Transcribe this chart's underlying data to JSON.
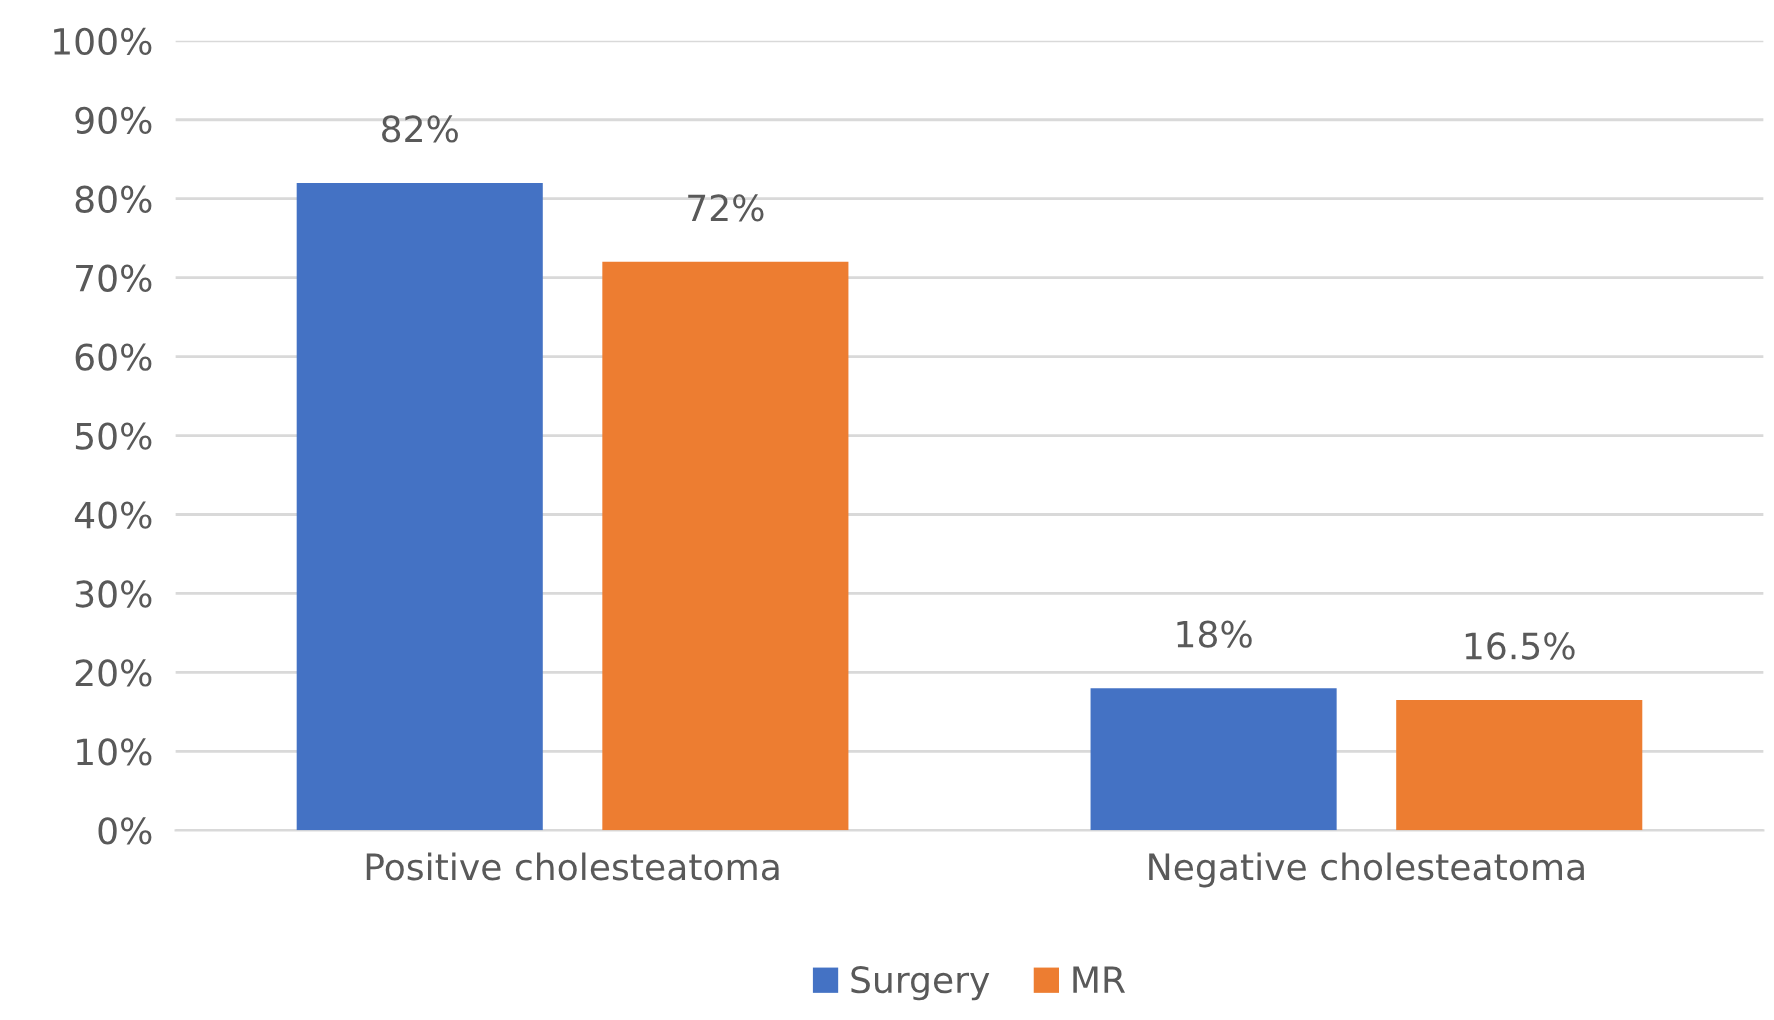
{
  "chart_data": {
    "type": "bar",
    "categories": [
      "Positive cholesteatoma",
      "Negative cholesteatoma"
    ],
    "series": [
      {
        "name": "Surgery",
        "color": "#4472c4",
        "values": [
          82,
          18
        ],
        "value_labels": [
          "82%",
          "18%"
        ]
      },
      {
        "name": "MR",
        "color": "#ed7d31",
        "values": [
          72,
          16.5
        ],
        "value_labels": [
          "72%",
          "16.5%"
        ]
      }
    ],
    "ylim": [
      0,
      100
    ],
    "yticks": [
      {
        "value": 0,
        "label": "0%"
      },
      {
        "value": 10,
        "label": "10%"
      },
      {
        "value": 20,
        "label": "20%"
      },
      {
        "value": 30,
        "label": "30%"
      },
      {
        "value": 40,
        "label": "40%"
      },
      {
        "value": 50,
        "label": "50%"
      },
      {
        "value": 60,
        "label": "60%"
      },
      {
        "value": 70,
        "label": "70%"
      },
      {
        "value": 80,
        "label": "80%"
      },
      {
        "value": 90,
        "label": "90%"
      },
      {
        "value": 100,
        "label": "100%"
      }
    ],
    "grid": "y",
    "legend": "bottom"
  }
}
